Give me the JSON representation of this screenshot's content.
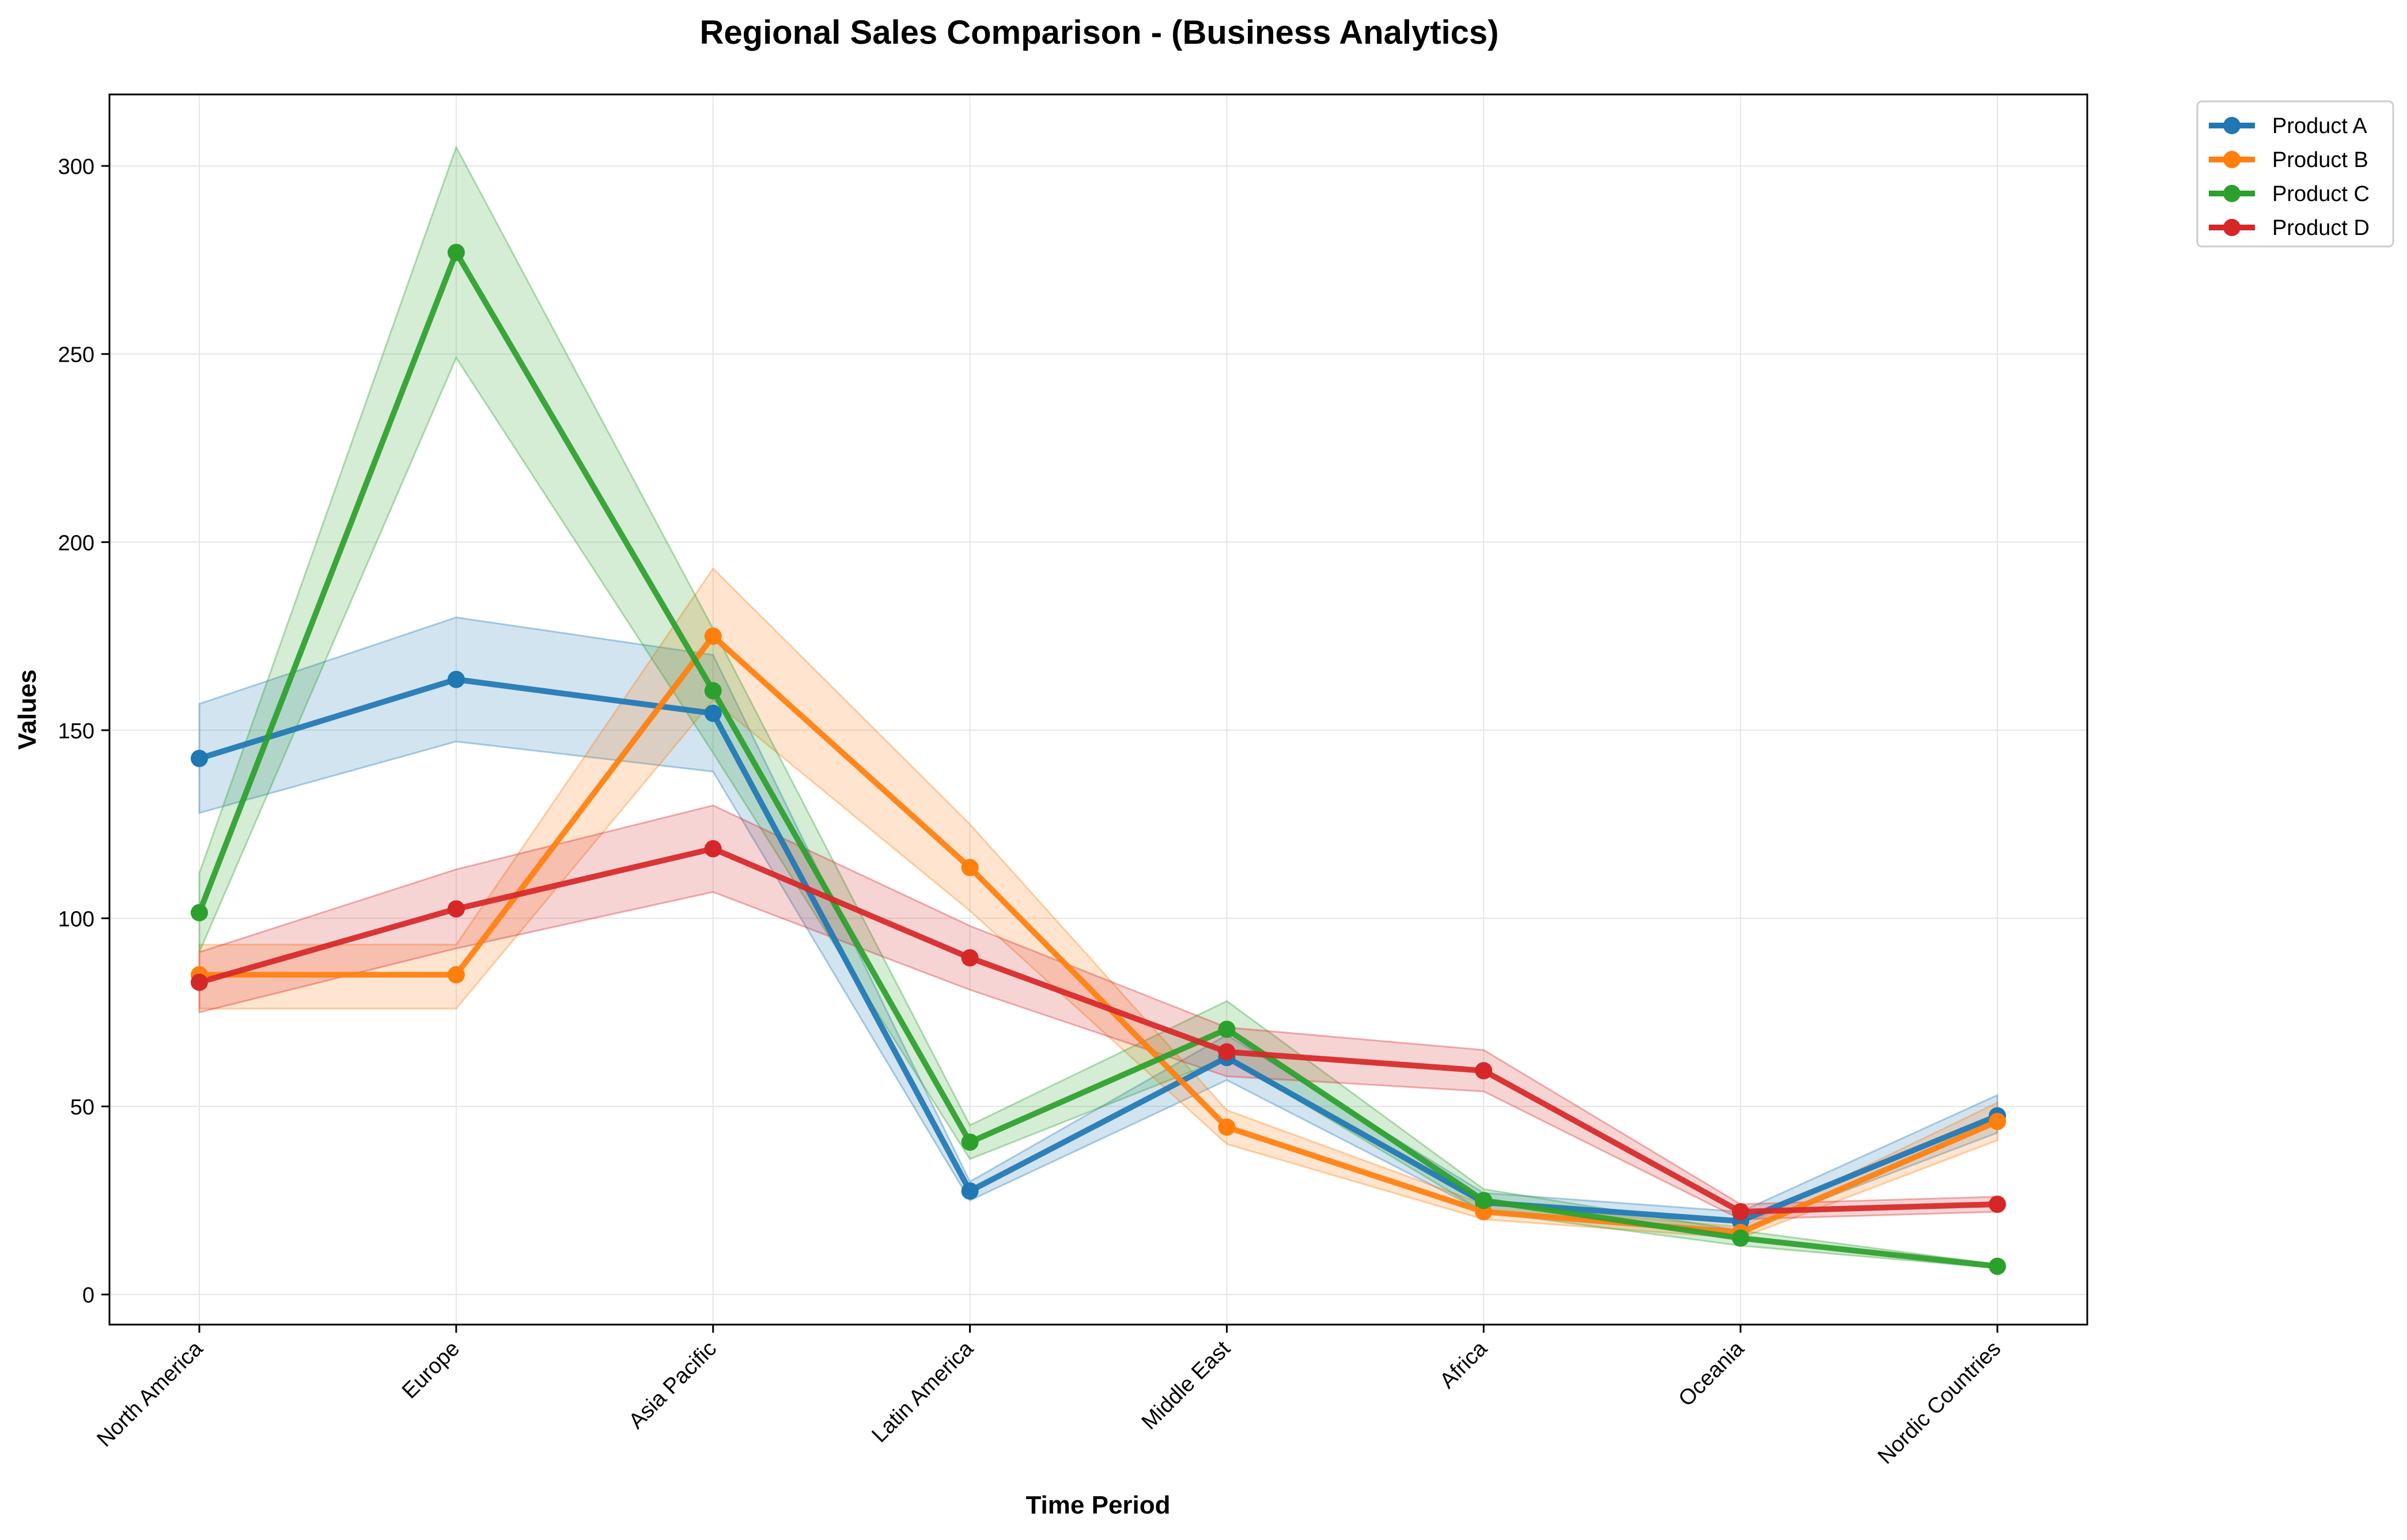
{
  "chart_data": {
    "type": "line",
    "title": "Regional Sales Comparison - (Business Analytics)",
    "xlabel": "Time Period",
    "ylabel": "Values",
    "categories": [
      "North America",
      "Europe",
      "Asia Pacific",
      "Latin America",
      "Middle East",
      "Africa",
      "Oceania",
      "Nordic Countries"
    ],
    "ylim": [
      -8,
      319
    ],
    "yticks": [
      0,
      50,
      100,
      150,
      200,
      250,
      300
    ],
    "grid": true,
    "legend_position": "top-right, outside plot",
    "series": [
      {
        "name": "Product A",
        "color": "#1f77b4",
        "values": [
          142.5,
          163.5,
          154.5,
          27.5,
          63.0,
          24.5,
          19.5,
          47.5
        ],
        "lower": [
          128,
          147,
          139,
          25,
          57,
          22,
          17,
          43
        ],
        "upper": [
          157,
          180,
          170,
          30,
          69,
          27,
          22,
          53
        ]
      },
      {
        "name": "Product B",
        "color": "#ff7f0e",
        "values": [
          85.0,
          85.0,
          175.0,
          113.5,
          44.5,
          22.0,
          16.5,
          46.0
        ],
        "lower": [
          76,
          76,
          158,
          102,
          40,
          20,
          15,
          41
        ],
        "upper": [
          93,
          93,
          193,
          125,
          49,
          24,
          18,
          51
        ]
      },
      {
        "name": "Product C",
        "color": "#2ca02c",
        "values": [
          101.5,
          277.0,
          160.5,
          40.5,
          70.5,
          25.0,
          15.0,
          7.5
        ],
        "lower": [
          91,
          249,
          144,
          36,
          63,
          22,
          13,
          7
        ],
        "upper": [
          112,
          305,
          177,
          45,
          78,
          28,
          17,
          8
        ]
      },
      {
        "name": "Product D",
        "color": "#d62728",
        "values": [
          83.0,
          102.5,
          118.5,
          89.5,
          64.5,
          59.5,
          22.0,
          24.0
        ],
        "lower": [
          75,
          92,
          107,
          81,
          58,
          54,
          20,
          22
        ],
        "upper": [
          91,
          113,
          130,
          98,
          71,
          65,
          24,
          26
        ]
      }
    ]
  }
}
